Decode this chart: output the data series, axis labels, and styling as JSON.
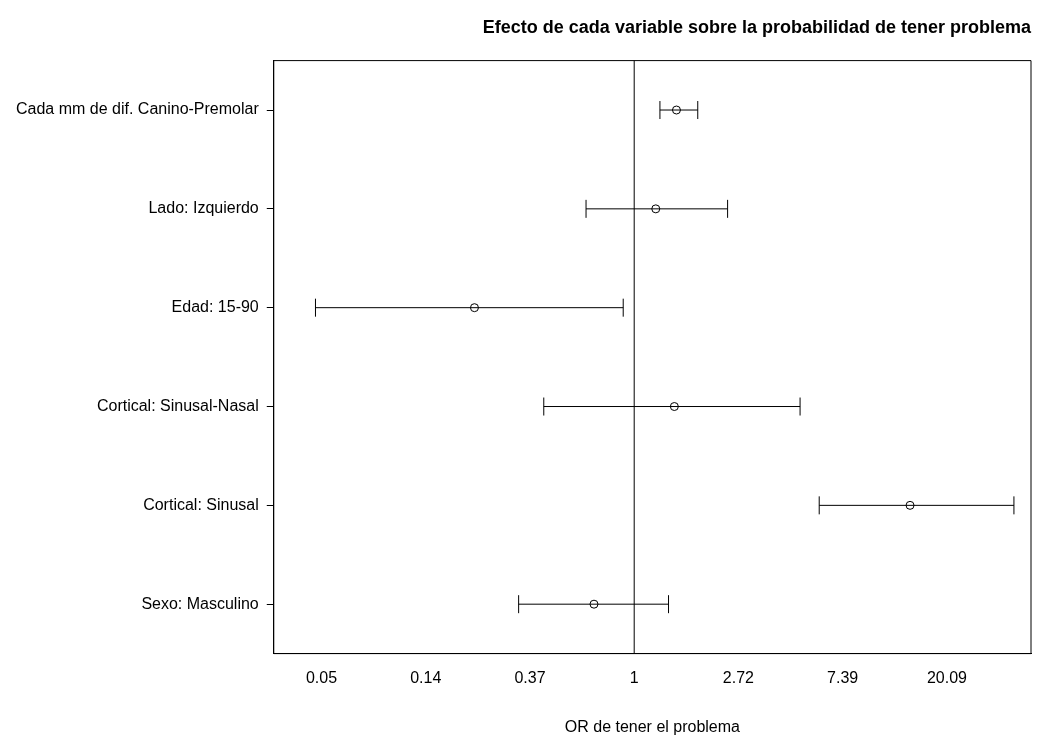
{
  "chart_data": {
    "type": "scatter",
    "title": "Efecto de cada variable sobre la probabilidad de tener problema",
    "xlabel": "OR de tener el problema",
    "categories": [
      "Cada mm de dif. Canino-Premolar",
      "Lado: Izquierdo",
      "Edad: 15-90",
      "Cortical: Sinusal-Nasal",
      "Cortical: Sinusal",
      "Sexo: Masculino"
    ],
    "orientation": "horizontal",
    "values": [
      1.5,
      1.23,
      0.216,
      1.47,
      14.1,
      0.68
    ],
    "errors": [
      [
        1.28,
        1.84
      ],
      [
        0.63,
        2.45
      ],
      [
        0.047,
        0.9
      ],
      [
        0.42,
        4.91
      ],
      [
        5.9,
        38.2
      ],
      [
        0.33,
        1.39
      ]
    ],
    "color": "#000000",
    "marker": "circle",
    "log": "x",
    "grid": false,
    "legend": false,
    "xlim": [
      0.0315,
      45
    ],
    "xticks": [
      {
        "value": 0.049787,
        "label": "0.05"
      },
      {
        "value": 0.135335,
        "label": "0.14"
      },
      {
        "value": 0.367879,
        "label": "0.37"
      },
      {
        "value": 1,
        "label": "1"
      },
      {
        "value": 2.718282,
        "label": "2.72"
      },
      {
        "value": 7.389056,
        "label": "7.39"
      },
      {
        "value": 20.085537,
        "label": "20.09"
      }
    ],
    "ref_lines": [
      {
        "axis": "x",
        "value": 1,
        "color": "#000000"
      }
    ]
  }
}
